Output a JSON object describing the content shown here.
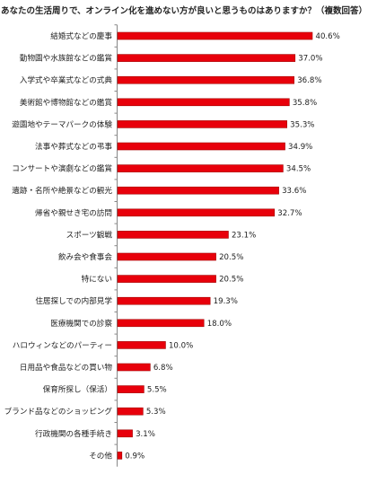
{
  "chart_data": {
    "type": "bar",
    "orientation": "horizontal",
    "title": "あなたの生活周りで、オンライン化を進めない方が良いと思うものはありますか？（複数回答）",
    "categories": [
      "結婚式などの慶事",
      "動物園や水族館などの鑑賞",
      "入学式や卒業式などの式典",
      "美術館や博物館などの鑑賞",
      "遊園地やテーマパークの体験",
      "法事や葬式などの弔事",
      "コンサートや演劇などの鑑賞",
      "遺跡・名所や絶景などの観光",
      "帰省や親せき宅の訪問",
      "スポーツ観戦",
      "飲み会や食事会",
      "特にない",
      "住居探しでの内部見学",
      "医療機関での診察",
      "ハロウィンなどのパーティー",
      "日用品や食品などの買い物",
      "保育所探し（保活）",
      "ブランド品などのショッピング",
      "行政機関の各種手続き",
      "その他"
    ],
    "values": [
      40.6,
      37.0,
      36.8,
      35.8,
      35.3,
      34.9,
      34.5,
      33.6,
      32.7,
      23.1,
      20.5,
      20.5,
      19.3,
      18.0,
      10.0,
      6.8,
      5.5,
      5.3,
      3.1,
      0.9
    ],
    "value_labels": [
      "40.6%",
      "37.0%",
      "36.8%",
      "35.8%",
      "35.3%",
      "34.9%",
      "34.5%",
      "33.6%",
      "32.7%",
      "23.1%",
      "20.5%",
      "20.5%",
      "19.3%",
      "18.0%",
      "10.0%",
      "6.8%",
      "5.5%",
      "5.3%",
      "3.1%",
      "0.9%"
    ],
    "xlim": [
      0,
      45
    ],
    "grid": false,
    "legend": "none",
    "bar_color": "#e8000b",
    "bar_edge_color": "#a30000"
  }
}
